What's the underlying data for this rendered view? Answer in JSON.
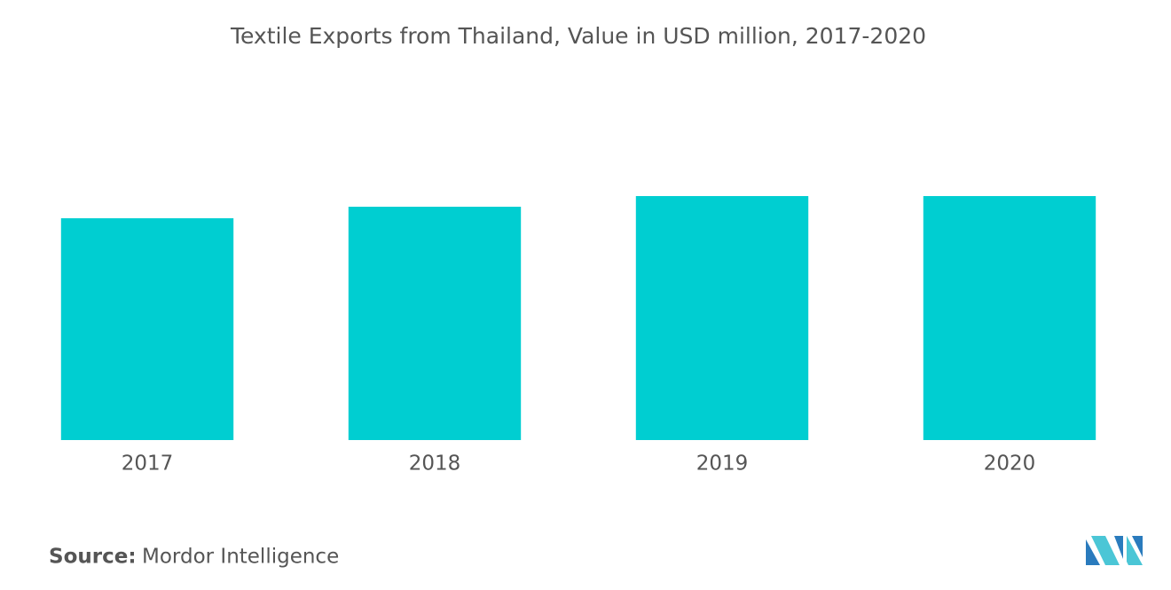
{
  "chart_data": {
    "type": "bar",
    "title": "Textile Exports from Thailand, Value in USD million, 2017-2020",
    "categories": [
      "2017",
      "2018",
      "2019",
      "2020"
    ],
    "values": [
      250,
      263,
      275,
      275
    ],
    "color": "#00ced1",
    "ylim": [
      0,
      360
    ],
    "grid": false,
    "source_label": "Source:",
    "source": "Mordor Intelligence"
  }
}
